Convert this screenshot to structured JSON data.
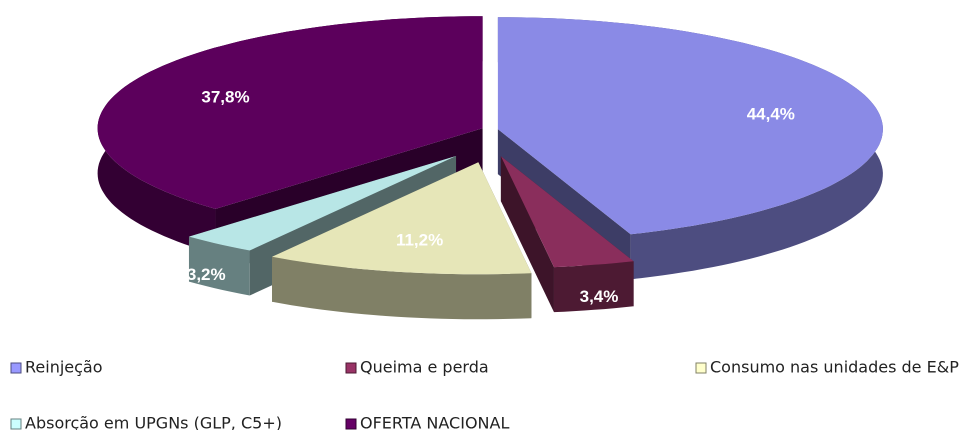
{
  "chart_data": {
    "type": "pie3d",
    "categories": [
      "Reinjeção",
      "Queima e perda",
      "Consumo nas unidades de E&P",
      "Absorção em UPGNs (GLP, C5+)",
      "OFERTA NACIONAL"
    ],
    "values": [
      44.4,
      3.4,
      11.2,
      3.2,
      37.8
    ],
    "value_labels": [
      "44,4%",
      "3,4%",
      "11,2%",
      "3,2%",
      "37,8%"
    ],
    "colors": [
      "#9999ff",
      "#993366",
      "#ffffcc",
      "#ccffff",
      "#660066"
    ]
  }
}
